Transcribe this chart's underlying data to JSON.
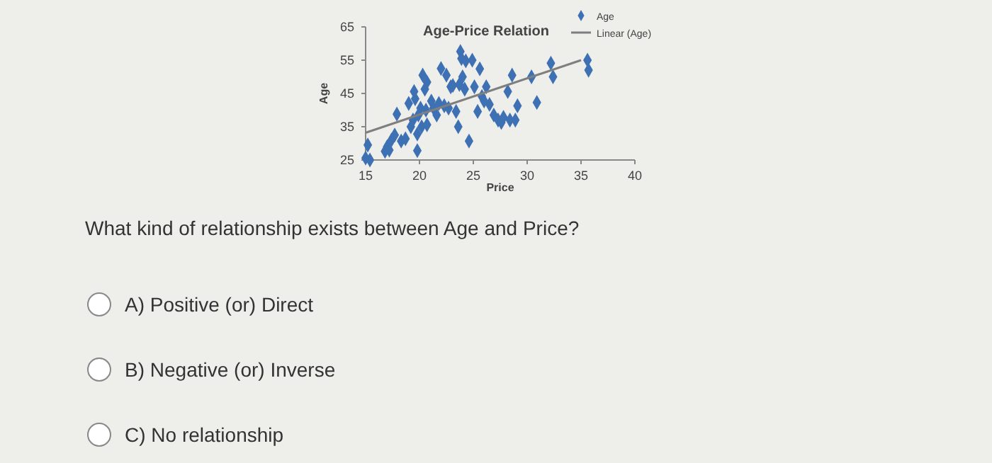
{
  "chart_data": {
    "type": "scatter",
    "title": "Age-Price Relation",
    "xlabel": "Price",
    "ylabel": "Age",
    "xlim": [
      15,
      40
    ],
    "xticks": [
      15,
      20,
      25,
      30,
      35,
      40
    ],
    "ylim": [
      25,
      65
    ],
    "yticks": [
      25,
      35,
      45,
      55,
      65
    ],
    "grid": false,
    "legend": "top right",
    "marker": "diamond",
    "series": [
      {
        "name": "Age",
        "color": "#3e70b4",
        "x": [
          15.2,
          15,
          15.4,
          16.8,
          17,
          17.2,
          17.4,
          17.7,
          17.9,
          18.3,
          18.7,
          19,
          19.2,
          19.4,
          19.5,
          19.6,
          19.8,
          19.8,
          19.9,
          20.1,
          20.2,
          20.3,
          20.5,
          20.6,
          20.7,
          20.7,
          21.1,
          21.3,
          21.6,
          21.8,
          22,
          22.3,
          22.5,
          22.7,
          22.9,
          23.1,
          23.4,
          23.6,
          23.7,
          23.8,
          23.9,
          24,
          24.2,
          24.3,
          24.6,
          24.9,
          25.1,
          25.4,
          25.6,
          25.8,
          26,
          26.2,
          26.5,
          26.9,
          27.3,
          27.6,
          27.8,
          28.2,
          28.4,
          28.6,
          28.9,
          29.1,
          30.4,
          30.9,
          32.2,
          32.4,
          35.6,
          35.7
        ],
        "values": [
          29.5,
          25.6,
          25,
          27.6,
          29,
          28,
          31,
          32.5,
          38.8,
          30.7,
          31.4,
          42,
          35,
          37,
          45.6,
          43.4,
          32.8,
          27.8,
          38.5,
          40.6,
          35,
          50.5,
          46.3,
          40,
          48.4,
          35.6,
          42.7,
          40.6,
          38.5,
          42,
          52.5,
          41.3,
          50.5,
          40.6,
          47,
          47.4,
          39.6,
          35,
          47.7,
          57.6,
          55.5,
          50,
          46.3,
          54.8,
          30.7,
          55,
          47,
          39.6,
          52.4,
          44.1,
          42.7,
          47,
          41.7,
          38.5,
          37,
          36.3,
          37.8,
          45.6,
          37,
          50.5,
          37,
          41.3,
          50,
          42.3,
          54.1,
          50,
          55,
          52
        ]
      },
      {
        "name": "Linear (Age)",
        "type": "line",
        "color": "#7f7f7f",
        "marker": "none",
        "x": [
          15,
          35
        ],
        "values": [
          33.2,
          55
        ]
      }
    ],
    "annotations": [
      "What kind of relationship exists between Age and Price?",
      "A) Positive (or) Direct",
      "B) Negative (or) Inverse",
      "C) No relationship"
    ]
  }
}
